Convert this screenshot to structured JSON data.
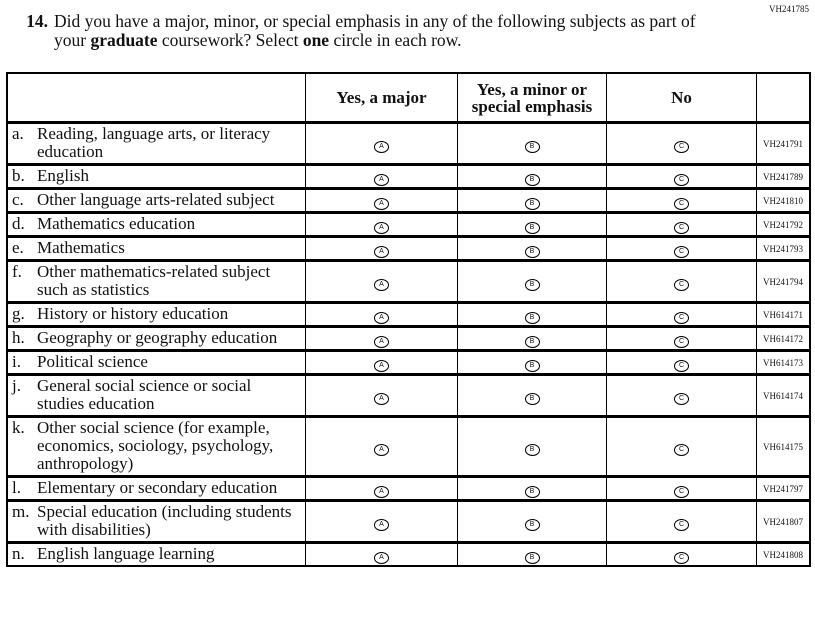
{
  "form_code": "VH241785",
  "question": {
    "number": "14.",
    "parts": [
      "Did you have a major, minor, or special emphasis in any of the following subjects as part of your",
      "graduate",
      "coursework? Select",
      "one",
      "circle in each row."
    ]
  },
  "table": {
    "headers": [
      "Yes, a major",
      "Yes, a minor or special emphasis",
      "No"
    ],
    "options": [
      "A",
      "B",
      "C"
    ],
    "rows": [
      {
        "letter": "a.",
        "label": "Reading, language arts, or literacy education",
        "code": "VH241791"
      },
      {
        "letter": "b.",
        "label": "English",
        "code": "VH241789"
      },
      {
        "letter": "c.",
        "label": "Other language arts-related subject",
        "code": "VH241810"
      },
      {
        "letter": "d.",
        "label": "Mathematics education",
        "code": "VH241792"
      },
      {
        "letter": "e.",
        "label": "Mathematics",
        "code": "VH241793"
      },
      {
        "letter": "f.",
        "label": "Other mathematics-related subject such as statistics",
        "code": "VH241794"
      },
      {
        "letter": "g.",
        "label": "History or history education",
        "code": "VH614171"
      },
      {
        "letter": "h.",
        "label": "Geography or geography education",
        "code": "VH614172"
      },
      {
        "letter": "i.",
        "label": "Political science",
        "code": "VH614173"
      },
      {
        "letter": "j.",
        "label": "General social science or social studies education",
        "code": "VH614174"
      },
      {
        "letter": "k.",
        "label": "Other social science (for example, economics, sociology, psychology, anthropology)",
        "code": "VH614175"
      },
      {
        "letter": "l.",
        "label": "Elementary or secondary education",
        "code": "VH241797"
      },
      {
        "letter": "m.",
        "label": "Special education (including students with disabilities)",
        "code": "VH241807"
      },
      {
        "letter": "n.",
        "label": "English language learning",
        "code": "VH241808"
      }
    ]
  }
}
